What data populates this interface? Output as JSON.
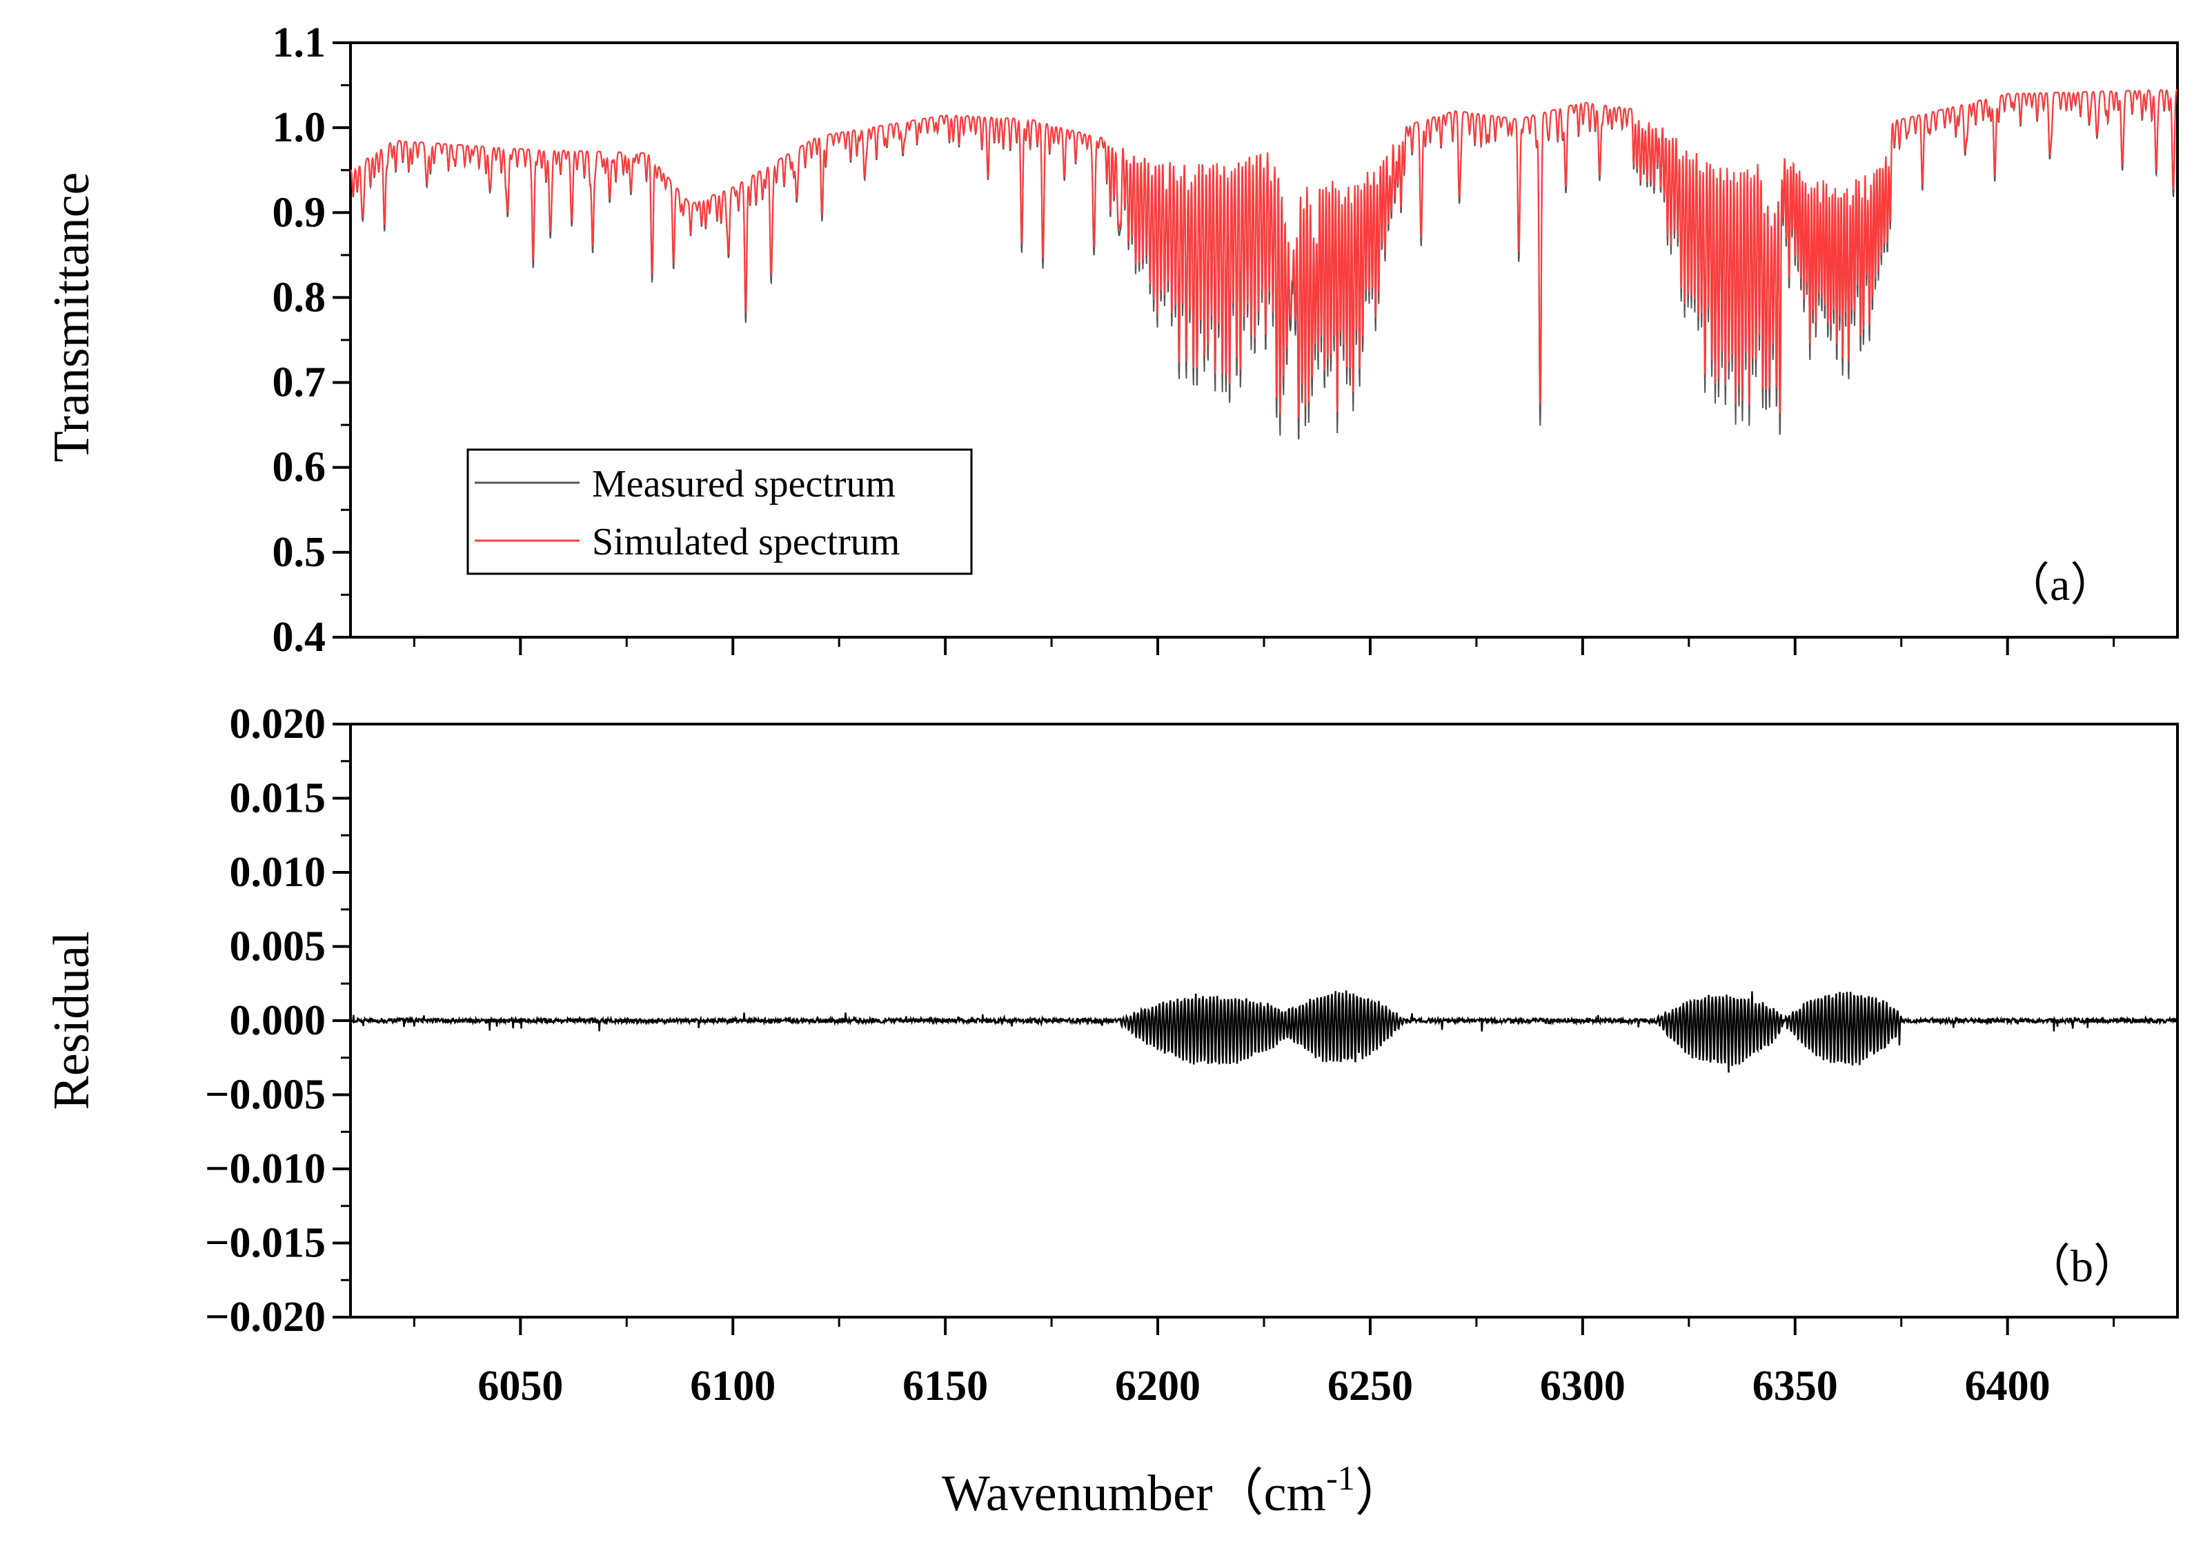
{
  "chart_data": [
    {
      "type": "line",
      "panel_label": "（a）",
      "ylabel": "Transmittance",
      "xlabel": "",
      "xlim": [
        6010,
        6440
      ],
      "ylim": [
        0.4,
        1.1
      ],
      "x_ticks": [
        6050,
        6100,
        6150,
        6200,
        6250,
        6300,
        6350,
        6400
      ],
      "y_ticks": [
        "0.4",
        "0.5",
        "0.6",
        "0.7",
        "0.8",
        "0.9",
        "1.0",
        "1.1"
      ],
      "legend": {
        "placement": "lower-left",
        "entries": [
          {
            "label": "Measured spectrum",
            "color": "#555555"
          },
          {
            "label": "Simulated spectrum",
            "color": "#ff3b3b"
          }
        ]
      },
      "series": [
        {
          "name": "Measured spectrum",
          "color": "#555555",
          "description": "transmittance spectrum with absorption bands",
          "baseline": [
            [
              6010,
              0.95
            ],
            [
              6020,
              0.985
            ],
            [
              6050,
              0.975
            ],
            [
              6080,
              0.97
            ],
            [
              6090,
              0.91
            ],
            [
              6100,
              0.93
            ],
            [
              6120,
              0.99
            ],
            [
              6150,
              1.015
            ],
            [
              6170,
              1.01
            ],
            [
              6185,
              0.99
            ],
            [
              6200,
              0.98
            ],
            [
              6230,
              1.0
            ],
            [
              6250,
              0.99
            ],
            [
              6270,
              1.02
            ],
            [
              6285,
              1.01
            ],
            [
              6300,
              1.03
            ],
            [
              6315,
              1.02
            ],
            [
              6330,
              1.0
            ],
            [
              6360,
              1.0
            ],
            [
              6375,
              1.01
            ],
            [
              6400,
              1.04
            ],
            [
              6440,
              1.045
            ]
          ],
          "bands": [
            {
              "start": 6188,
              "end": 6238,
              "center": 6215,
              "max_depth": 0.3,
              "spacing": 0.85
            },
            {
              "start": 6228,
              "end": 6258,
              "center": 6241,
              "max_depth": 0.33,
              "spacing": 0.75
            },
            {
              "start": 6312,
              "end": 6347,
              "center": 6336,
              "max_depth": 0.36,
              "spacing": 0.8
            },
            {
              "start": 6343,
              "end": 6373,
              "center": 6360,
              "max_depth": 0.3,
              "spacing": 0.7
            }
          ],
          "isolated_lines": [
            [
              6013,
              0.06
            ],
            [
              6018,
              0.1
            ],
            [
              6028,
              0.05
            ],
            [
              6043,
              0.04
            ],
            [
              6047,
              0.08
            ],
            [
              6053,
              0.14
            ],
            [
              6057,
              0.1
            ],
            [
              6062,
              0.07
            ],
            [
              6067,
              0.12
            ],
            [
              6071,
              0.06
            ],
            [
              6076,
              0.05
            ],
            [
              6081,
              0.12
            ],
            [
              6086,
              0.07
            ],
            [
              6099,
              0.08
            ],
            [
              6103,
              0.15
            ],
            [
              6109,
              0.14
            ],
            [
              6115,
              0.06
            ],
            [
              6121,
              0.08
            ],
            [
              6131,
              0.06
            ],
            [
              6140,
              0.04
            ],
            [
              6160,
              0.04
            ],
            [
              6168,
              0.12
            ],
            [
              6173,
              0.14
            ],
            [
              6178,
              0.05
            ],
            [
              6185,
              0.14
            ],
            [
              6191,
              0.09
            ],
            [
              6262,
              0.14
            ],
            [
              6271,
              0.07
            ],
            [
              6285,
              0.14
            ],
            [
              6290,
              0.34
            ],
            [
              6296,
              0.08
            ],
            [
              6304,
              0.09
            ],
            [
              6380,
              0.06
            ],
            [
              6390,
              0.06
            ],
            [
              6397,
              0.1
            ],
            [
              6410,
              0.05
            ],
            [
              6421,
              0.05
            ],
            [
              6427,
              0.09
            ],
            [
              6435,
              0.1
            ],
            [
              6439,
              0.12
            ]
          ]
        },
        {
          "name": "Simulated spectrum",
          "color": "#ff3b3b",
          "description": "model spectrum closely overlaying the measured spectrum"
        }
      ]
    },
    {
      "type": "line",
      "panel_label": "（b）",
      "ylabel": "Residual",
      "xlabel": "Wavenumber（cm-1）",
      "xlim": [
        6010,
        6440
      ],
      "ylim": [
        -0.02,
        0.02
      ],
      "x_ticks": [
        6050,
        6100,
        6150,
        6200,
        6250,
        6300,
        6350,
        6400
      ],
      "y_ticks": [
        "−0.020",
        "−0.015",
        "−0.010",
        "−0.005",
        "0.000",
        "0.005",
        "0.010",
        "0.015",
        "0.020"
      ],
      "series": [
        {
          "name": "Residual",
          "color": "#000000",
          "description": "residual between measured and simulated spectra",
          "noise_amplitude": 0.0006,
          "bursts": [
            {
              "start": 6190,
              "end": 6235,
              "center": 6213,
              "amplitude_up": 0.0016,
              "amplitude_down": 0.003
            },
            {
              "start": 6228,
              "end": 6258,
              "center": 6243,
              "amplitude_up": 0.0019,
              "amplitude_down": 0.0029
            },
            {
              "start": 6315,
              "end": 6347,
              "center": 6333,
              "amplitude_up": 0.0017,
              "amplitude_down": 0.003
            },
            {
              "start": 6345,
              "end": 6375,
              "center": 6362,
              "amplitude_up": 0.0019,
              "amplitude_down": 0.003
            }
          ]
        }
      ]
    }
  ],
  "axis_titles": {
    "top_y": "Transmittance",
    "bottom_y": "Residual",
    "x": "Wavenumber（cm",
    "x_sup": "-1",
    "x_close": "）"
  }
}
